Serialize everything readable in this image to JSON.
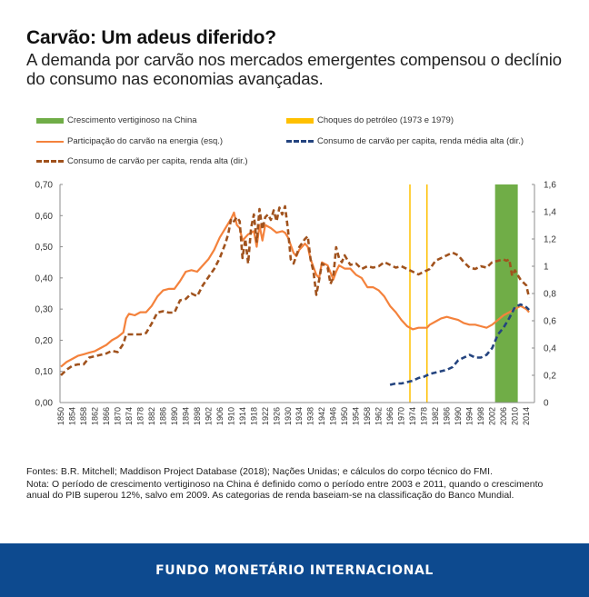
{
  "header": {
    "title": "Carvão: Um adeus diferido?",
    "subtitle": "A demanda por carvão nos mercados emergentes compensou o declínio do consumo nas economias avançadas."
  },
  "legend": {
    "items": [
      {
        "label": "Crescimento vertiginoso na China",
        "type": "block",
        "color": "#70ad47"
      },
      {
        "label": "Choques do petróleo (1973 e 1979)",
        "type": "block",
        "color": "#ffc000"
      },
      {
        "label": "Participação do carvão na energia (esq.)",
        "type": "line",
        "color": "#f4823c"
      },
      {
        "label": "Consumo de carvão per capita, renda média alta (dir.)",
        "type": "dash",
        "color": "#24447f"
      },
      {
        "label": "Consumo de carvão per capita, renda alta (dir.)",
        "type": "dash",
        "color": "#a0521d"
      }
    ]
  },
  "chart_data": {
    "type": "line",
    "title": "Carvão: Um adeus diferido?",
    "xlabel": "",
    "ylabel_left": "",
    "ylabel_right": "",
    "xlim": [
      1850,
      2016
    ],
    "ylim_left": [
      0,
      0.7
    ],
    "ylim_right": [
      0,
      1.6
    ],
    "grid": false,
    "legend_position": "top",
    "left_ticks": [
      "0,00",
      "0,10",
      "0,20",
      "0,30",
      "0,40",
      "0,50",
      "0,60",
      "0,70"
    ],
    "left_tick_values": [
      0,
      0.1,
      0.2,
      0.3,
      0.4,
      0.5,
      0.6,
      0.7
    ],
    "right_ticks": [
      "0",
      "0,2",
      "0,4",
      "0,6",
      "0,8",
      "1",
      "1,2",
      "1,4",
      "1,6"
    ],
    "right_tick_values": [
      0,
      0.2,
      0.4,
      0.6,
      0.8,
      1.0,
      1.2,
      1.4,
      1.6
    ],
    "x_ticks": [
      "1850",
      "1854",
      "1858",
      "1862",
      "1866",
      "1870",
      "1874",
      "1878",
      "1882",
      "1886",
      "1890",
      "1894",
      "1898",
      "1902",
      "1906",
      "1910",
      "1914",
      "1918",
      "1922",
      "1926",
      "1930",
      "1934",
      "1938",
      "1942",
      "1946",
      "1950",
      "1954",
      "1958",
      "1962",
      "1966",
      "1970",
      "1974",
      "1978",
      "1982",
      "1986",
      "1990",
      "1994",
      "1998",
      "2002",
      "2006",
      "2010",
      "2014"
    ],
    "shaded_periods": [
      {
        "name": "Crescimento vertiginoso na China",
        "start": 2003,
        "end": 2011,
        "color": "#70ad47"
      }
    ],
    "vertical_lines": [
      {
        "name": "Choques do petróleo",
        "x": 1973,
        "color": "#ffc000"
      },
      {
        "name": "Choques do petróleo",
        "x": 1979,
        "color": "#ffc000"
      }
    ],
    "series": [
      {
        "name": "Participação do carvão na energia (esq.)",
        "axis": "left",
        "style": "solid",
        "color": "#f4823c",
        "x": [
          1850,
          1852,
          1854,
          1856,
          1858,
          1860,
          1862,
          1864,
          1866,
          1868,
          1870,
          1872,
          1873,
          1874,
          1876,
          1878,
          1880,
          1882,
          1884,
          1886,
          1888,
          1890,
          1892,
          1894,
          1896,
          1898,
          1900,
          1902,
          1904,
          1906,
          1908,
          1910,
          1911,
          1912,
          1913,
          1914,
          1916,
          1918,
          1919,
          1920,
          1921,
          1922,
          1924,
          1926,
          1928,
          1929,
          1930,
          1932,
          1933,
          1934,
          1936,
          1937,
          1938,
          1940,
          1941,
          1942,
          1944,
          1946,
          1947,
          1948,
          1950,
          1952,
          1954,
          1956,
          1958,
          1960,
          1962,
          1964,
          1966,
          1968,
          1970,
          1972,
          1974,
          1976,
          1978,
          1979,
          1980,
          1982,
          1984,
          1986,
          1988,
          1990,
          1992,
          1994,
          1996,
          1998,
          2000,
          2002,
          2004,
          2006,
          2008,
          2010,
          2012,
          2014,
          2015
        ],
        "y": [
          0.115,
          0.13,
          0.14,
          0.15,
          0.155,
          0.16,
          0.165,
          0.175,
          0.185,
          0.2,
          0.21,
          0.225,
          0.27,
          0.285,
          0.28,
          0.29,
          0.29,
          0.31,
          0.34,
          0.36,
          0.365,
          0.365,
          0.39,
          0.42,
          0.425,
          0.42,
          0.44,
          0.46,
          0.49,
          0.53,
          0.56,
          0.59,
          0.61,
          0.57,
          0.56,
          0.52,
          0.54,
          0.55,
          0.5,
          0.57,
          0.52,
          0.57,
          0.56,
          0.545,
          0.55,
          0.545,
          0.53,
          0.48,
          0.47,
          0.49,
          0.51,
          0.5,
          0.46,
          0.41,
          0.4,
          0.45,
          0.44,
          0.395,
          0.42,
          0.44,
          0.43,
          0.43,
          0.41,
          0.4,
          0.37,
          0.37,
          0.36,
          0.34,
          0.31,
          0.29,
          0.265,
          0.245,
          0.235,
          0.24,
          0.24,
          0.24,
          0.25,
          0.26,
          0.27,
          0.275,
          0.27,
          0.265,
          0.255,
          0.25,
          0.25,
          0.245,
          0.24,
          0.25,
          0.265,
          0.28,
          0.29,
          0.3,
          0.31,
          0.3,
          0.29
        ]
      },
      {
        "name": "Consumo de carvão per capita, renda alta (dir.)",
        "axis": "right",
        "style": "dashed",
        "color": "#a0521d",
        "x": [
          1850,
          1852,
          1854,
          1856,
          1858,
          1860,
          1862,
          1864,
          1866,
          1868,
          1870,
          1872,
          1873,
          1874,
          1876,
          1878,
          1880,
          1882,
          1884,
          1886,
          1888,
          1890,
          1892,
          1894,
          1896,
          1898,
          1900,
          1902,
          1904,
          1906,
          1908,
          1909,
          1910,
          1911,
          1912,
          1913,
          1914,
          1915,
          1916,
          1917,
          1918,
          1919,
          1920,
          1921,
          1922,
          1923,
          1924,
          1925,
          1926,
          1927,
          1928,
          1929,
          1930,
          1931,
          1932,
          1934,
          1936,
          1937,
          1938,
          1939,
          1940,
          1941,
          1942,
          1944,
          1945,
          1946,
          1947,
          1948,
          1949,
          1950,
          1952,
          1954,
          1956,
          1958,
          1960,
          1962,
          1964,
          1966,
          1968,
          1970,
          1972,
          1974,
          1975,
          1976,
          1978,
          1980,
          1982,
          1984,
          1986,
          1988,
          1990,
          1992,
          1994,
          1996,
          1998,
          2000,
          2002,
          2004,
          2006,
          2007,
          2008,
          2009,
          2010,
          2012,
          2014,
          2015
        ],
        "y": [
          0.2,
          0.24,
          0.27,
          0.28,
          0.28,
          0.33,
          0.34,
          0.35,
          0.36,
          0.38,
          0.37,
          0.43,
          0.5,
          0.5,
          0.5,
          0.5,
          0.51,
          0.58,
          0.66,
          0.67,
          0.66,
          0.66,
          0.75,
          0.76,
          0.8,
          0.78,
          0.86,
          0.92,
          0.98,
          1.06,
          1.17,
          1.24,
          1.35,
          1.33,
          1.36,
          1.33,
          1.06,
          1.2,
          1.02,
          1.28,
          1.38,
          1.18,
          1.42,
          1.27,
          1.36,
          1.38,
          1.34,
          1.41,
          1.33,
          1.43,
          1.38,
          1.44,
          1.27,
          1.05,
          1.02,
          1.14,
          1.2,
          1.22,
          1.05,
          0.96,
          0.79,
          0.9,
          1.02,
          0.99,
          0.87,
          0.92,
          1.14,
          1.06,
          1.03,
          1.08,
          1.01,
          1.02,
          0.98,
          1.0,
          0.99,
          1.0,
          1.03,
          1.01,
          0.99,
          1.0,
          0.98,
          0.96,
          0.95,
          0.94,
          0.96,
          0.98,
          1.04,
          1.06,
          1.08,
          1.1,
          1.08,
          1.03,
          0.99,
          0.98,
          1.0,
          0.99,
          1.03,
          1.04,
          1.05,
          1.04,
          1.05,
          0.93,
          0.97,
          0.9,
          0.86,
          0.77
        ]
      },
      {
        "name": "Consumo de carvão per capita, renda média alta (dir.)",
        "axis": "right",
        "style": "dashed",
        "color": "#24447f",
        "x": [
          1966,
          1968,
          1970,
          1972,
          1974,
          1976,
          1978,
          1980,
          1982,
          1984,
          1986,
          1988,
          1990,
          1992,
          1994,
          1996,
          1998,
          2000,
          2002,
          2003,
          2004,
          2006,
          2008,
          2010,
          2012,
          2014,
          2015
        ],
        "y": [
          0.13,
          0.14,
          0.14,
          0.15,
          0.16,
          0.18,
          0.19,
          0.21,
          0.22,
          0.23,
          0.24,
          0.26,
          0.31,
          0.33,
          0.35,
          0.33,
          0.33,
          0.35,
          0.4,
          0.45,
          0.5,
          0.55,
          0.62,
          0.7,
          0.72,
          0.7,
          0.68
        ]
      }
    ]
  },
  "notes": {
    "sources": "Fontes: B.R. Mitchell; Maddison Project Database (2018); Nações Unidas; e cálculos do corpo técnico do FMI.",
    "note": "Nota: O período de crescimento vertiginoso na China é definido como o período entre 2003 e 2011, quando o crescimento anual do PIB superou 12%, salvo em 2009. As categorias de renda baseiam-se na classificação do Banco Mundial."
  },
  "footer": {
    "label": "FUNDO MONETÁRIO INTERNACIONAL"
  }
}
